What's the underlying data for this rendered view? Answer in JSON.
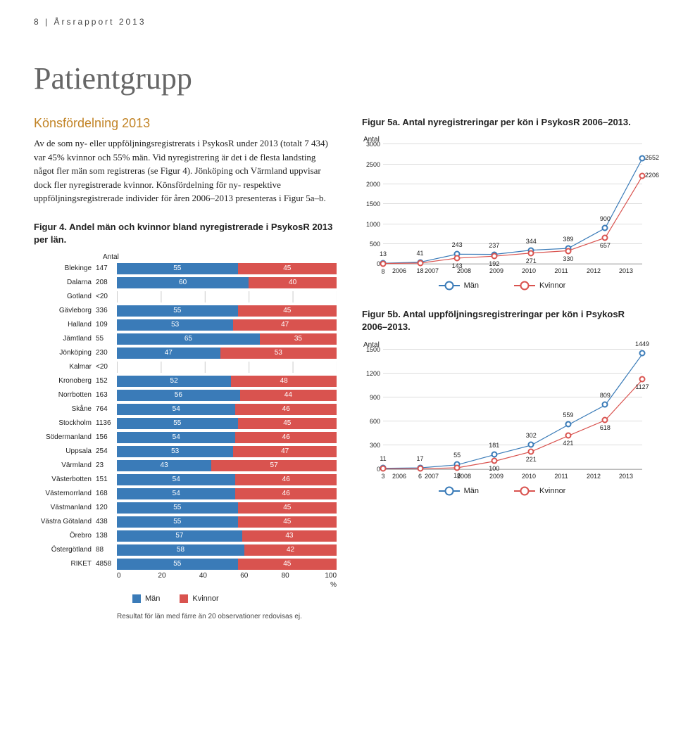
{
  "header": "8 | Årsrapport 2013",
  "title": "Patientgrupp",
  "section_heading": "Könsfördelning 2013",
  "body": "Av de som ny- eller uppföljningsregistrerats i PsykosR under 2013 (totalt 7 434) var 45% kvinnor och 55% män. Vid nyregistrering är det i de flesta landsting något fler män som registreras (se Figur 4). Jönköping och Värmland uppvisar dock fler nyregistrerade kvinnor. Könsfördelning för ny- respektive uppföljningsregistrerade individer för åren 2006–2013 presenteras i Figur 5a–b.",
  "colors": {
    "men": "#3a7bb8",
    "women": "#d9534f",
    "men_text": "#ffffff",
    "women_text": "#ffffff",
    "accent": "#c28427"
  },
  "legend": {
    "men": "Män",
    "women": "Kvinnor"
  },
  "fig4": {
    "title_strong": "Figur 4.",
    "title_rest": " Andel män och kvinnor bland nyregistrerade i PsykosR 2013 per län.",
    "antal_label": "Antal",
    "axis_ticks": [
      "0",
      "20",
      "40",
      "60",
      "80",
      "100"
    ],
    "pct_label": "%",
    "footnote": "Resultat för län med färre än 20 observationer redovisas ej.",
    "rows": [
      {
        "label": "Blekinge",
        "antal": "147",
        "m": 55,
        "f": 45
      },
      {
        "label": "Dalarna",
        "antal": "208",
        "m": 60,
        "f": 40
      },
      {
        "label": "Gotland",
        "antal": "<20",
        "m": null,
        "f": null
      },
      {
        "label": "Gävleborg",
        "antal": "336",
        "m": 55,
        "f": 45
      },
      {
        "label": "Halland",
        "antal": "109",
        "m": 53,
        "f": 47
      },
      {
        "label": "Jämtland",
        "antal": "55",
        "m": 65,
        "f": 35
      },
      {
        "label": "Jönköping",
        "antal": "230",
        "m": 47,
        "f": 53
      },
      {
        "label": "Kalmar",
        "antal": "<20",
        "m": null,
        "f": null
      },
      {
        "label": "Kronoberg",
        "antal": "152",
        "m": 52,
        "f": 48
      },
      {
        "label": "Norrbotten",
        "antal": "163",
        "m": 56,
        "f": 44
      },
      {
        "label": "Skåne",
        "antal": "764",
        "m": 54,
        "f": 46
      },
      {
        "label": "Stockholm",
        "antal": "1136",
        "m": 55,
        "f": 45
      },
      {
        "label": "Södermanland",
        "antal": "156",
        "m": 54,
        "f": 46
      },
      {
        "label": "Uppsala",
        "antal": "254",
        "m": 53,
        "f": 47
      },
      {
        "label": "Värmland",
        "antal": "23",
        "m": 43,
        "f": 57
      },
      {
        "label": "Västerbotten",
        "antal": "151",
        "m": 54,
        "f": 46
      },
      {
        "label": "Västernorrland",
        "antal": "168",
        "m": 54,
        "f": 46
      },
      {
        "label": "Västmanland",
        "antal": "120",
        "m": 55,
        "f": 45
      },
      {
        "label": "Västra Götaland",
        "antal": "438",
        "m": 55,
        "f": 45
      },
      {
        "label": "Örebro",
        "antal": "138",
        "m": 57,
        "f": 43
      },
      {
        "label": "Östergötland",
        "antal": "88",
        "m": 58,
        "f": 42
      },
      {
        "label": "RIKET",
        "antal": "4858",
        "m": 55,
        "f": 45
      }
    ]
  },
  "fig5a": {
    "title_strong": "Figur 5a.",
    "title_rest": " Antal nyregistreringar per kön i PsykosR 2006–2013.",
    "antal_label": "Antal",
    "ymax": 3000,
    "ystep": 500,
    "years": [
      "2006",
      "2007",
      "2008",
      "2009",
      "2010",
      "2011",
      "2012",
      "2013"
    ],
    "men": [
      13,
      41,
      243,
      237,
      344,
      389,
      900,
      2652
    ],
    "women": [
      8,
      18,
      143,
      192,
      271,
      330,
      657,
      2206
    ],
    "men_labels": [
      "13",
      "41",
      "243",
      "237",
      "344",
      "389",
      "",
      ""
    ],
    "women_labels": [
      "8",
      "18",
      "143",
      "192",
      "271",
      "330",
      "657",
      ""
    ],
    "end_labels": {
      "men": "2652",
      "women": "2206",
      "mid": "900"
    }
  },
  "fig5b": {
    "title_strong": "Figur 5b.",
    "title_rest": " Antal uppföljningsregistreringar per kön i PsykosR 2006–2013.",
    "antal_label": "Antal",
    "ymax": 1500,
    "ystep": 300,
    "years": [
      "2006",
      "2007",
      "2008",
      "2009",
      "2010",
      "2011",
      "2012",
      "2013"
    ],
    "men": [
      11,
      17,
      55,
      181,
      302,
      559,
      809,
      1449
    ],
    "women": [
      3,
      6,
      18,
      100,
      221,
      421,
      618,
      1127
    ],
    "men_labels": [
      "11",
      "17",
      "55",
      "181",
      "302",
      "559",
      "809",
      "1449"
    ],
    "women_labels": [
      "3",
      "6",
      "18",
      "100",
      "221",
      "421",
      "618",
      "1127"
    ]
  }
}
